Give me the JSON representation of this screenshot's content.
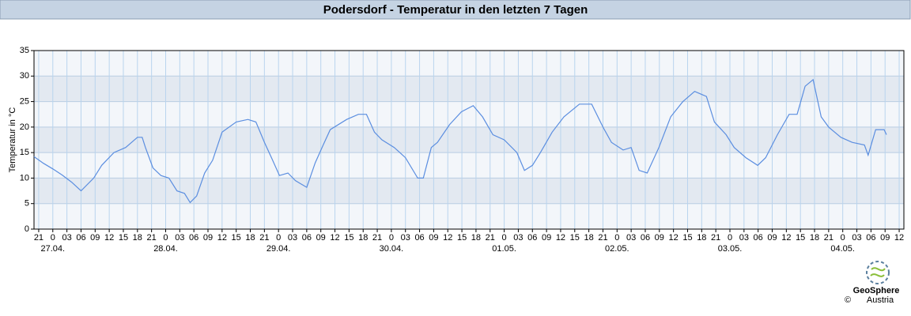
{
  "chart_data": {
    "type": "line",
    "title": "Podersdorf - Temperatur in den letzten 7 Tagen",
    "y_label": "Temperatur in °C",
    "xlim": [
      -4,
      181
    ],
    "ylim": [
      0,
      35
    ],
    "yticks": [
      0,
      5,
      10,
      15,
      20,
      25,
      30,
      35
    ],
    "xticks": [
      {
        "value": -3,
        "label": "21"
      },
      0,
      {
        "value": 3,
        "label": "03"
      },
      {
        "value": 6,
        "label": "06"
      },
      {
        "value": 9,
        "label": "09"
      },
      12,
      15,
      18,
      21,
      {
        "value": 24,
        "label": "0"
      },
      {
        "value": 27,
        "label": "03"
      },
      {
        "value": 30,
        "label": "06"
      },
      {
        "value": 33,
        "label": "09"
      },
      {
        "value": 36,
        "label": "12"
      },
      {
        "value": 39,
        "label": "15"
      },
      {
        "value": 42,
        "label": "18"
      },
      {
        "value": 45,
        "label": "21"
      },
      {
        "value": 48,
        "label": "0"
      },
      {
        "value": 51,
        "label": "03"
      },
      {
        "value": 54,
        "label": "06"
      },
      {
        "value": 57,
        "label": "09"
      },
      {
        "value": 60,
        "label": "12"
      },
      {
        "value": 63,
        "label": "15"
      },
      {
        "value": 66,
        "label": "18"
      },
      {
        "value": 69,
        "label": "21"
      },
      {
        "value": 72,
        "label": "0"
      },
      {
        "value": 75,
        "label": "03"
      },
      {
        "value": 78,
        "label": "06"
      },
      {
        "value": 81,
        "label": "09"
      },
      {
        "value": 84,
        "label": "12"
      },
      {
        "value": 87,
        "label": "15"
      },
      {
        "value": 90,
        "label": "18"
      },
      {
        "value": 93,
        "label": "21"
      },
      {
        "value": 96,
        "label": "0"
      },
      {
        "value": 99,
        "label": "03"
      },
      {
        "value": 102,
        "label": "06"
      },
      {
        "value": 105,
        "label": "09"
      },
      {
        "value": 108,
        "label": "12"
      },
      {
        "value": 111,
        "label": "15"
      },
      {
        "value": 114,
        "label": "18"
      },
      {
        "value": 117,
        "label": "21"
      },
      {
        "value": 120,
        "label": "0"
      },
      {
        "value": 123,
        "label": "03"
      },
      {
        "value": 126,
        "label": "06"
      },
      {
        "value": 129,
        "label": "09"
      },
      {
        "value": 132,
        "label": "12"
      },
      {
        "value": 135,
        "label": "15"
      },
      {
        "value": 138,
        "label": "18"
      },
      {
        "value": 141,
        "label": "21"
      },
      {
        "value": 144,
        "label": "0"
      },
      {
        "value": 147,
        "label": "03"
      },
      {
        "value": 150,
        "label": "06"
      },
      {
        "value": 153,
        "label": "09"
      },
      {
        "value": 156,
        "label": "12"
      },
      {
        "value": 159,
        "label": "15"
      },
      {
        "value": 162,
        "label": "18"
      },
      {
        "value": 165,
        "label": "21"
      },
      {
        "value": 168,
        "label": "0"
      },
      {
        "value": 171,
        "label": "03"
      },
      {
        "value": 174,
        "label": "06"
      },
      {
        "value": 177,
        "label": "09"
      },
      {
        "value": 180,
        "label": "12"
      }
    ],
    "x_date_labels": [
      {
        "value": 0,
        "label": "27.04."
      },
      {
        "value": 24,
        "label": "28.04."
      },
      {
        "value": 48,
        "label": "29.04."
      },
      {
        "value": 72,
        "label": "30.04."
      },
      {
        "value": 96,
        "label": "01.05."
      },
      {
        "value": 120,
        "label": "02.05."
      },
      {
        "value": 144,
        "label": "03.05."
      },
      {
        "value": 168,
        "label": "04.05."
      }
    ],
    "grid": true,
    "x": [
      -4,
      -2,
      0,
      2,
      4,
      6,
      8.7,
      10.4,
      13,
      15.5,
      18,
      19,
      19.7,
      21.3,
      23,
      24.7,
      26.4,
      28,
      29.2,
      30.6,
      32.3,
      34,
      36,
      39,
      41.5,
      43.2,
      45,
      46.5,
      48.2,
      50,
      51.6,
      54,
      55.8,
      57.5,
      59,
      62.5,
      65,
      66.7,
      68.4,
      70,
      72.6,
      75,
      77.6,
      78.8,
      80.5,
      81.8,
      84.4,
      86.9,
      89.4,
      91.4,
      93.6,
      96,
      98.7,
      100.3,
      102,
      103.7,
      106.2,
      108.7,
      112,
      114.6,
      117,
      118.8,
      121.3,
      123,
      124.7,
      126.4,
      128.9,
      131.4,
      134,
      136.5,
      139,
      140.7,
      143.2,
      144.9,
      147.4,
      149.9,
      151.6,
      154.1,
      156.6,
      158.3,
      160,
      161.7,
      163.4,
      165,
      167.6,
      170,
      172.6,
      173.4,
      175,
      176.8,
      177.3
    ],
    "series": [
      {
        "name": "Temperatur",
        "color": "#5b8ee0",
        "values": [
          14.2,
          12.9,
          11.8,
          10.6,
          9.2,
          7.5,
          10,
          12.5,
          15,
          16,
          18,
          18,
          16,
          12,
          10.5,
          10,
          7.5,
          7,
          5.2,
          6.5,
          11,
          13.5,
          19,
          21,
          21.5,
          21,
          17,
          14,
          10.5,
          11,
          9.5,
          8.2,
          13,
          16.5,
          19.5,
          21.5,
          22.5,
          22.5,
          19,
          17.5,
          16,
          14,
          10,
          10,
          16,
          17,
          20.5,
          23,
          24.2,
          22,
          18.5,
          17.5,
          15,
          11.5,
          12.5,
          15,
          19,
          22,
          24.5,
          24.5,
          20,
          17,
          15.5,
          16,
          11.5,
          11,
          16,
          22,
          25,
          27,
          26,
          21,
          18.5,
          16,
          14,
          12.5,
          14,
          18.5,
          22.5,
          22.5,
          28,
          29.3,
          22,
          20,
          18,
          17,
          16.5,
          14.5,
          19.5,
          19.5,
          18.5
        ]
      }
    ],
    "footer": {
      "brand": "GeoSphere",
      "sub": "Austria",
      "copyright": "©"
    }
  }
}
